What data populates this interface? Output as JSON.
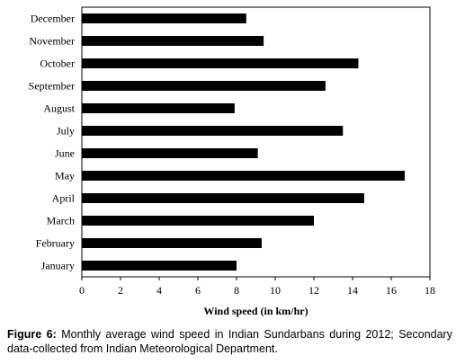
{
  "chart_data": {
    "type": "bar",
    "orientation": "horizontal",
    "categories": [
      "December",
      "November",
      "October",
      "September",
      "August",
      "July",
      "June",
      "May",
      "April",
      "March",
      "February",
      "January"
    ],
    "values": [
      8.5,
      9.4,
      14.3,
      12.6,
      7.9,
      13.5,
      9.1,
      16.7,
      14.6,
      12.0,
      9.3,
      8.0
    ],
    "xlabel": "Wind speed (in km/hr)",
    "xlim": [
      0,
      18
    ],
    "xticks": [
      0,
      2,
      4,
      6,
      8,
      10,
      12,
      14,
      16,
      18
    ],
    "grid": false,
    "bar_color": "#000000"
  },
  "caption": {
    "label": "Figure 6:",
    "text": " Monthly average wind speed in Indian Sundarbans during 2012; Secondary data-collected from Indian Meteorological Department."
  }
}
